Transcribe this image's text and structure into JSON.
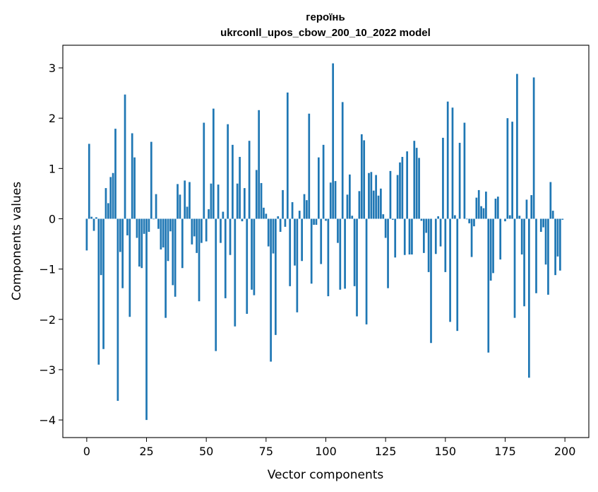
{
  "chart_data": {
    "type": "bar",
    "title_line1": "героїнь",
    "title_line2": "ukrconll_upos_cbow_200_10_2022 model",
    "xlabel": "Vector components",
    "ylabel": "Components values",
    "xlim": [
      -10,
      210
    ],
    "ylim": [
      -4.35,
      3.45
    ],
    "xticks": [
      0,
      25,
      50,
      75,
      100,
      125,
      150,
      175,
      200
    ],
    "xtick_labels": [
      "0",
      "25",
      "50",
      "75",
      "100",
      "125",
      "150",
      "175",
      "200"
    ],
    "yticks": [
      -4,
      -3,
      -2,
      -1,
      0,
      1,
      2,
      3
    ],
    "ytick_labels": [
      "−4",
      "−3",
      "−2",
      "−1",
      "0",
      "1",
      "2",
      "3"
    ],
    "bar_color": "#1f77b4",
    "grid": false,
    "x": [
      0,
      1,
      2,
      3,
      4,
      5,
      6,
      7,
      8,
      9,
      10,
      11,
      12,
      13,
      14,
      15,
      16,
      17,
      18,
      19,
      20,
      21,
      22,
      23,
      24,
      25,
      26,
      27,
      28,
      29,
      30,
      31,
      32,
      33,
      34,
      35,
      36,
      37,
      38,
      39,
      40,
      41,
      42,
      43,
      44,
      45,
      46,
      47,
      48,
      49,
      50,
      51,
      52,
      53,
      54,
      55,
      56,
      57,
      58,
      59,
      60,
      61,
      62,
      63,
      64,
      65,
      66,
      67,
      68,
      69,
      70,
      71,
      72,
      73,
      74,
      75,
      76,
      77,
      78,
      79,
      80,
      81,
      82,
      83,
      84,
      85,
      86,
      87,
      88,
      89,
      90,
      91,
      92,
      93,
      94,
      95,
      96,
      97,
      98,
      99,
      100,
      101,
      102,
      103,
      104,
      105,
      106,
      107,
      108,
      109,
      110,
      111,
      112,
      113,
      114,
      115,
      116,
      117,
      118,
      119,
      120,
      121,
      122,
      123,
      124,
      125,
      126,
      127,
      128,
      129,
      130,
      131,
      132,
      133,
      134,
      135,
      136,
      137,
      138,
      139,
      140,
      141,
      142,
      143,
      144,
      145,
      146,
      147,
      148,
      149,
      150,
      151,
      152,
      153,
      154,
      155,
      156,
      157,
      158,
      159,
      160,
      161,
      162,
      163,
      164,
      165,
      166,
      167,
      168,
      169,
      170,
      171,
      172,
      173,
      174,
      175,
      176,
      177,
      178,
      179,
      180,
      181,
      182,
      183,
      184,
      185,
      186,
      187,
      188,
      189,
      190,
      191,
      192,
      193,
      194,
      195,
      196,
      197,
      198,
      199
    ],
    "values": [
      -0.63,
      1.49,
      0.04,
      -0.24,
      0.03,
      -2.9,
      -1.12,
      -2.59,
      0.61,
      0.31,
      0.83,
      0.91,
      1.79,
      -3.62,
      -0.66,
      -1.38,
      2.47,
      -0.33,
      -1.95,
      1.7,
      1.22,
      -0.38,
      -0.95,
      -0.98,
      -0.3,
      -4.0,
      -0.26,
      1.53,
      -0.01,
      0.49,
      -0.2,
      -0.61,
      -0.57,
      -1.97,
      -0.84,
      -0.25,
      -1.32,
      -1.55,
      0.69,
      0.48,
      -0.98,
      0.76,
      0.24,
      0.73,
      -0.51,
      -0.35,
      -0.68,
      -1.64,
      -0.48,
      1.91,
      -0.45,
      0.19,
      0.7,
      2.19,
      -2.63,
      0.68,
      -0.48,
      0.14,
      -1.58,
      1.88,
      -0.72,
      1.47,
      -2.14,
      0.7,
      1.23,
      -0.05,
      0.61,
      -1.89,
      1.55,
      -1.41,
      -1.52,
      0.97,
      2.16,
      0.71,
      0.22,
      0.1,
      -0.55,
      -2.84,
      -0.69,
      -2.31,
      0.05,
      -0.26,
      0.57,
      -0.16,
      2.51,
      -1.34,
      0.33,
      -0.93,
      -1.86,
      0.16,
      -0.84,
      0.49,
      0.37,
      2.09,
      -1.29,
      -0.12,
      -0.12,
      1.22,
      -0.9,
      1.47,
      -0.04,
      -1.54,
      0.72,
      3.09,
      0.75,
      -0.48,
      -1.41,
      2.32,
      -1.39,
      0.48,
      0.88,
      0.06,
      -1.34,
      -1.94,
      0.55,
      1.68,
      1.56,
      -2.1,
      0.91,
      0.93,
      0.56,
      0.87,
      0.46,
      0.6,
      0.09,
      -0.38,
      -1.38,
      0.95,
      -0.02,
      -0.77,
      0.87,
      1.12,
      1.23,
      -0.72,
      1.34,
      -0.71,
      -0.71,
      1.55,
      1.41,
      1.21,
      -0.04,
      -0.68,
      -0.28,
      -1.06,
      -2.47,
      0.0,
      -0.7,
      0.05,
      -0.55,
      1.61,
      -1.06,
      2.33,
      -2.05,
      2.21,
      0.07,
      -2.23,
      1.51,
      0.0,
      1.91,
      -0.01,
      -0.09,
      -0.76,
      -0.15,
      0.42,
      0.57,
      0.25,
      0.21,
      0.54,
      -2.66,
      -1.23,
      -1.08,
      0.4,
      0.44,
      -0.81,
      0.0,
      -0.05,
      2.0,
      0.07,
      1.93,
      -1.97,
      2.88,
      0.06,
      -0.71,
      -1.74,
      0.38,
      -3.16,
      0.47,
      2.81,
      -1.48,
      0.0,
      -0.26,
      -0.17,
      -0.91,
      -1.51,
      0.73,
      0.16,
      -1.12,
      -0.75,
      -1.03,
      -0.02
    ]
  }
}
